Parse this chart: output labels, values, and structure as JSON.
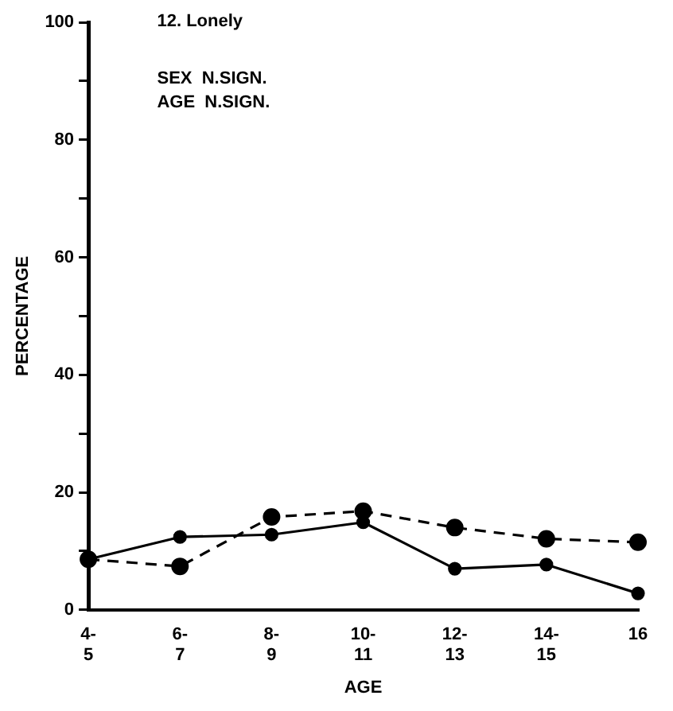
{
  "chart_data": {
    "type": "line",
    "title": "12. Lonely",
    "xlabel": "AGE",
    "ylabel": "PERCENTAGE",
    "annotations": [
      "SEX  N.SIGN.",
      "AGE  N.SIGN."
    ],
    "categories": [
      "4-\n5",
      "6-\n7",
      "8-\n9",
      "10-\n11",
      "12-\n13",
      "14-\n15",
      "16"
    ],
    "series": [
      {
        "color": "#000000",
        "line_style": "solid",
        "values": [
          8.6,
          12.4,
          12.8,
          14.9,
          7.0,
          7.7,
          2.8
        ]
      },
      {
        "color": "#000000",
        "line_style": "dashed",
        "values": [
          8.6,
          7.4,
          15.8,
          16.8,
          14.0,
          12.1,
          11.5
        ]
      }
    ],
    "ylim": [
      0,
      100
    ],
    "yticks": [
      0,
      {
        "value": 10,
        "label": null
      },
      20,
      {
        "value": 30,
        "label": null
      },
      40,
      {
        "value": 50,
        "label": null
      },
      60,
      {
        "value": 70,
        "label": null
      },
      80,
      {
        "value": 90,
        "label": null
      },
      100
    ],
    "marker": "circle",
    "grid": false,
    "legend": false
  }
}
